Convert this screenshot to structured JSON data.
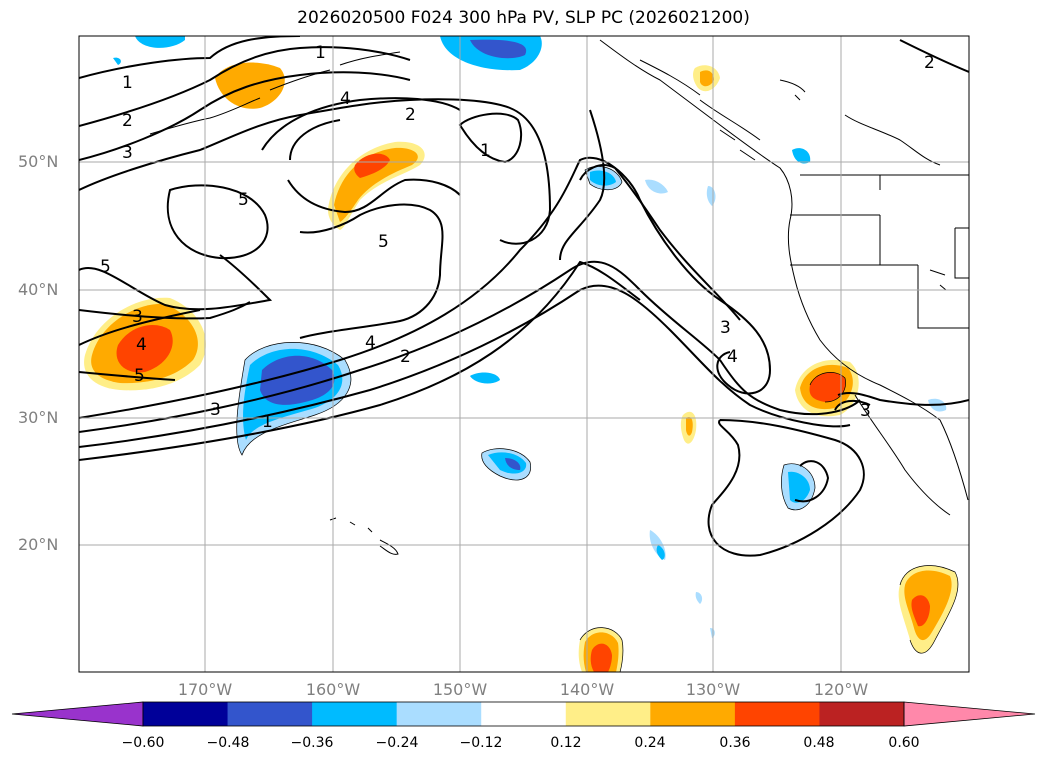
{
  "title": "2026020500 F024 300 hPa PV, SLP PC (2026021200)",
  "lat_labels": [
    "50°N",
    "40°N",
    "30°N",
    "20°N"
  ],
  "lon_labels": [
    "170°W",
    "160°W",
    "150°W",
    "140°W",
    "130°W",
    "120°W"
  ],
  "colorbar": {
    "colors": [
      "#9933cc",
      "#000099",
      "#3355cc",
      "#00bbff",
      "#aaddff",
      "#ffffff",
      "#ffee88",
      "#ffaa00",
      "#ff4400",
      "#bb2222",
      "#ff88aa"
    ],
    "ticks": [
      "−0.60",
      "−0.48",
      "−0.36",
      "−0.24",
      "−0.12",
      "0.12",
      "0.24",
      "0.36",
      "0.48",
      "0.60"
    ]
  },
  "contour_labels": [
    {
      "id": "a",
      "text": "1"
    },
    {
      "id": "b",
      "text": "2"
    },
    {
      "id": "c",
      "text": "3"
    },
    {
      "id": "d",
      "text": "4"
    },
    {
      "id": "e",
      "text": "5"
    },
    {
      "id": "f",
      "text": "2"
    },
    {
      "id": "g",
      "text": "1"
    },
    {
      "id": "h",
      "text": "5"
    },
    {
      "id": "i",
      "text": "5"
    },
    {
      "id": "j",
      "text": "2"
    },
    {
      "id": "k",
      "text": "3"
    },
    {
      "id": "l",
      "text": "4"
    },
    {
      "id": "m",
      "text": "5"
    },
    {
      "id": "n",
      "text": "4"
    },
    {
      "id": "o",
      "text": "2"
    },
    {
      "id": "p",
      "text": "3"
    },
    {
      "id": "q",
      "text": "1"
    },
    {
      "id": "r",
      "text": "3"
    },
    {
      "id": "s",
      "text": "4"
    },
    {
      "id": "t",
      "text": "3"
    },
    {
      "id": "u",
      "text": "1"
    }
  ]
}
